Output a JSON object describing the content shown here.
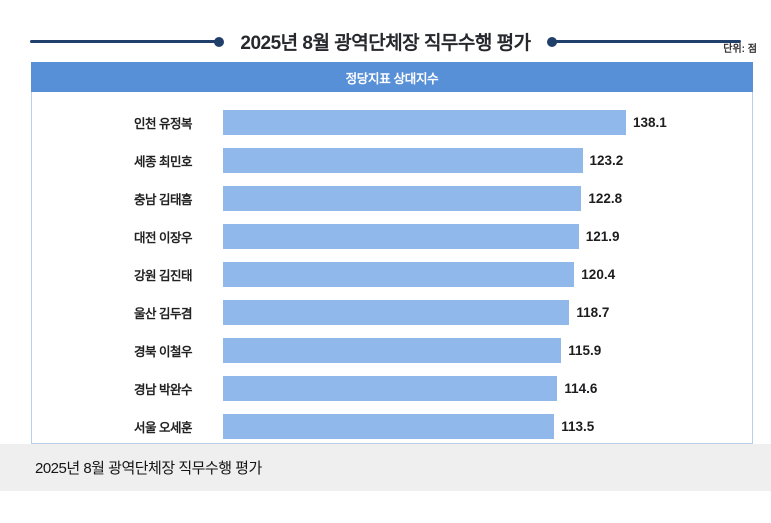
{
  "page": {
    "title": "2025년 8월 광역단체장 직무수행 평가",
    "unit_label": "단위: 점",
    "caption": "2025년 8월 광역단체장 직무수행 평가"
  },
  "panel": {
    "header": "정당지표 상대지수"
  },
  "colors": {
    "navy_line": "#20406b",
    "panel_header_bg": "#5890d8",
    "bar_fill": "#90b8ea",
    "panel_border": "#b9cfe9",
    "caption_bg": "#efefef"
  },
  "chart_data": {
    "type": "bar",
    "orientation": "horizontal",
    "title": "정당지표 상대지수",
    "unit": "점",
    "categories": [
      "인천 유정복",
      "세종 최민호",
      "충남 김태흠",
      "대전 이장우",
      "강원 김진태",
      "울산 김두겸",
      "경북 이철우",
      "경남 박완수",
      "서울 오세훈"
    ],
    "values": [
      138.1,
      123.2,
      122.8,
      121.9,
      120.4,
      118.7,
      115.9,
      114.6,
      113.5
    ],
    "xlim": [
      0,
      138.1
    ],
    "value_labels_shown": true,
    "grid": false,
    "legend": false
  }
}
